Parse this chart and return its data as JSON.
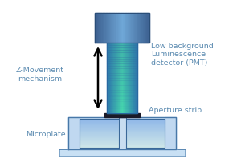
{
  "bg_color": "#ffffff",
  "label_zmove": "Z-Movement\nmechanism",
  "label_pmt": "Low background\nLuminescence\ndetector (PMT)",
  "label_aperture": "Aperture strip",
  "label_microplate": "Microplate",
  "text_color": "#5a8ab0",
  "pmt_head_edge_color": "#4a6e99",
  "pmt_head_ctr_color": "#6a9ecc",
  "tube_edge_color": "#3888b8",
  "tube_ctr_color": "#48d0a8",
  "aperture_color": "#1a1a2a",
  "plate_bg": "#daeeff",
  "plate_well_dark": "#5a90c8",
  "plate_well_light": "#b8d8f4",
  "plate_divider": "#3a6898",
  "plate_base_color": "#c8e0f4",
  "plate_outer_border": "#4878a8"
}
